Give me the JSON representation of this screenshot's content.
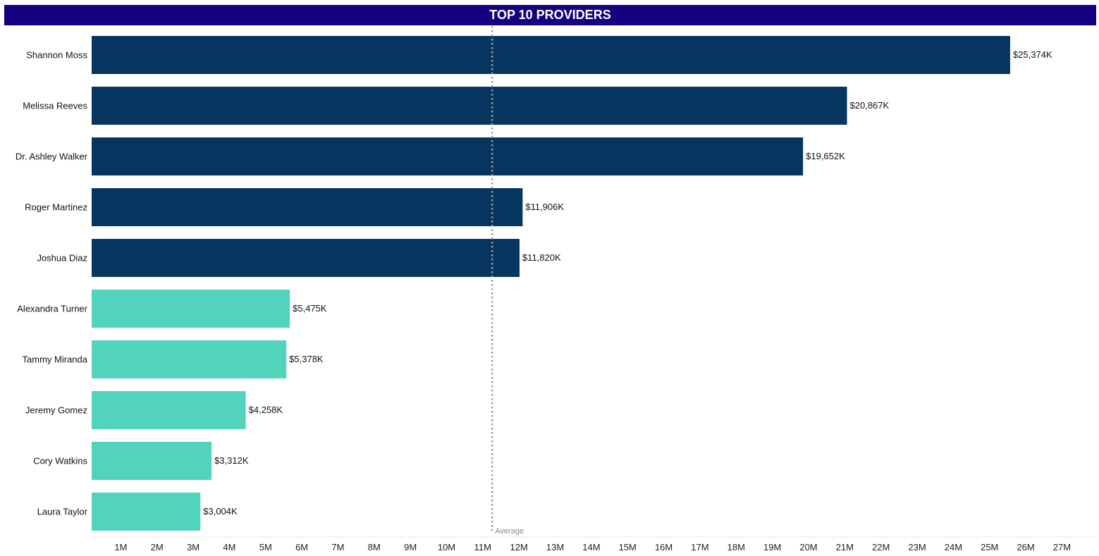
{
  "title": "TOP 10 PROVIDERS",
  "colors": {
    "title_background": "#160080",
    "title_text": "#ffffff",
    "above_average": "#06365f",
    "below_average": "#51d3bc",
    "average_line": "#9a9ea5",
    "axis_text": "#222222"
  },
  "chart_data": {
    "type": "bar",
    "orientation": "horizontal",
    "title": "TOP 10 PROVIDERS",
    "categories": [
      "Shannon Moss",
      "Melissa Reeves",
      "Dr. Ashley Walker",
      "Roger Martinez",
      "Joshua Diaz",
      "Alexandra Turner",
      "Tammy Miranda",
      "Jeremy Gomez",
      "Cory Watkins",
      "Laura Taylor"
    ],
    "values": [
      25374,
      20867,
      19652,
      11906,
      11820,
      5475,
      5378,
      4258,
      3312,
      3004
    ],
    "value_unit": "thousands of dollars",
    "data_labels": [
      "$25,374K",
      "$20,867K",
      "$19,652K",
      "$11,906K",
      "$11,820K",
      "$5,475K",
      "$5,378K",
      "$4,258K",
      "$3,312K",
      "$3,004K"
    ],
    "average": {
      "label": "Average",
      "value": 11065
    },
    "x_ticks": {
      "values": [
        1000,
        2000,
        3000,
        4000,
        5000,
        6000,
        7000,
        8000,
        9000,
        10000,
        11000,
        12000,
        13000,
        14000,
        15000,
        16000,
        17000,
        18000,
        19000,
        20000,
        21000,
        22000,
        23000,
        24000,
        25000,
        26000,
        27000
      ],
      "labels": [
        "1M",
        "2M",
        "3M",
        "4M",
        "5M",
        "6M",
        "7M",
        "8M",
        "9M",
        "10M",
        "11M",
        "12M",
        "13M",
        "14M",
        "15M",
        "16M",
        "17M",
        "18M",
        "19M",
        "20M",
        "21M",
        "22M",
        "23M",
        "24M",
        "25M",
        "26M",
        "27M"
      ]
    },
    "xlim": [
      0,
      27000
    ],
    "xlabel": "",
    "ylabel": "",
    "grid": false,
    "legend": false
  }
}
